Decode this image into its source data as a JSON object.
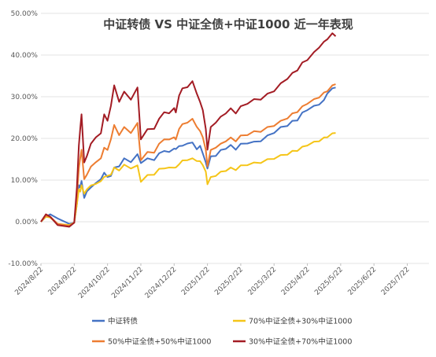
{
  "chart_data": {
    "type": "line",
    "title": "中证转债 VS 中证全债+中证1000 近一年表现",
    "xlabel": "",
    "ylabel": "",
    "ylim": [
      -0.1,
      0.5
    ],
    "y_ticks": [
      -0.1,
      0.0,
      0.1,
      0.2,
      0.3,
      0.4,
      0.5
    ],
    "y_tick_labels": [
      "-10.00%",
      "0.00%",
      "10.00%",
      "20.00%",
      "30.00%",
      "40.00%",
      "50.00%"
    ],
    "x_tick_labels": [
      "2024/8/22",
      "2024/9/22",
      "2024/10/22",
      "2024/11/22",
      "2024/12/22",
      "2025/1/22",
      "2025/2/22",
      "2025/3/22",
      "2025/4/22",
      "2025/5/22",
      "2025/6/22",
      "2025/7/22"
    ],
    "grid": "horizontal",
    "legend_position": "bottom",
    "series": [
      {
        "name": "中证转债",
        "color": "#4472C4",
        "points": [
          [
            0,
            0.0
          ],
          [
            0.15,
            0.012
          ],
          [
            0.28,
            0.018
          ],
          [
            0.5,
            0.008
          ],
          [
            0.85,
            -0.005
          ],
          [
            1.0,
            0.0
          ],
          [
            1.08,
            0.04
          ],
          [
            1.14,
            0.09
          ],
          [
            1.18,
            0.08
          ],
          [
            1.22,
            0.1
          ],
          [
            1.3,
            0.055
          ],
          [
            1.38,
            0.075
          ],
          [
            1.5,
            0.08
          ],
          [
            1.65,
            0.095
          ],
          [
            1.8,
            0.1
          ],
          [
            1.9,
            0.12
          ],
          [
            2.0,
            0.105
          ],
          [
            2.1,
            0.112
          ],
          [
            2.2,
            0.128
          ],
          [
            2.35,
            0.135
          ],
          [
            2.5,
            0.15
          ],
          [
            2.7,
            0.145
          ],
          [
            2.9,
            0.16
          ],
          [
            3.0,
            0.143
          ],
          [
            3.2,
            0.15
          ],
          [
            3.4,
            0.15
          ],
          [
            3.55,
            0.162
          ],
          [
            3.7,
            0.172
          ],
          [
            3.85,
            0.165
          ],
          [
            4.0,
            0.178
          ],
          [
            4.05,
            0.172
          ],
          [
            4.15,
            0.184
          ],
          [
            4.25,
            0.18
          ],
          [
            4.4,
            0.19
          ],
          [
            4.55,
            0.188
          ],
          [
            4.68,
            0.176
          ],
          [
            4.78,
            0.18
          ],
          [
            4.86,
            0.166
          ],
          [
            4.95,
            0.14
          ],
          [
            5.0,
            0.13
          ],
          [
            5.1,
            0.155
          ],
          [
            5.25,
            0.16
          ],
          [
            5.4,
            0.17
          ],
          [
            5.55,
            0.177
          ],
          [
            5.7,
            0.182
          ],
          [
            5.85,
            0.175
          ],
          [
            6.0,
            0.185
          ],
          [
            6.2,
            0.19
          ],
          [
            6.4,
            0.19
          ],
          [
            6.6,
            0.195
          ],
          [
            6.8,
            0.205
          ],
          [
            7.0,
            0.215
          ],
          [
            7.2,
            0.225
          ],
          [
            7.4,
            0.232
          ],
          [
            7.55,
            0.24
          ],
          [
            7.7,
            0.245
          ],
          [
            7.85,
            0.26
          ],
          [
            8.0,
            0.27
          ],
          [
            8.2,
            0.276
          ],
          [
            8.35,
            0.283
          ],
          [
            8.5,
            0.29
          ],
          [
            8.6,
            0.31
          ],
          [
            8.75,
            0.318
          ],
          [
            8.85,
            0.322
          ]
        ]
      },
      {
        "name": "70%中证全债+30%中证1000",
        "color": "#F5C518",
        "points": [
          [
            0,
            0.0
          ],
          [
            0.15,
            0.012
          ],
          [
            0.28,
            0.01
          ],
          [
            0.5,
            -0.005
          ],
          [
            0.85,
            -0.008
          ],
          [
            1.0,
            0.0
          ],
          [
            1.08,
            0.04
          ],
          [
            1.14,
            0.08
          ],
          [
            1.18,
            0.07
          ],
          [
            1.22,
            0.09
          ],
          [
            1.3,
            0.065
          ],
          [
            1.38,
            0.08
          ],
          [
            1.5,
            0.085
          ],
          [
            1.65,
            0.093
          ],
          [
            1.8,
            0.095
          ],
          [
            1.9,
            0.11
          ],
          [
            2.0,
            0.108
          ],
          [
            2.1,
            0.115
          ],
          [
            2.2,
            0.128
          ],
          [
            2.35,
            0.125
          ],
          [
            2.5,
            0.135
          ],
          [
            2.7,
            0.13
          ],
          [
            2.9,
            0.133
          ],
          [
            3.0,
            0.098
          ],
          [
            3.2,
            0.11
          ],
          [
            3.4,
            0.115
          ],
          [
            3.55,
            0.125
          ],
          [
            3.7,
            0.13
          ],
          [
            3.85,
            0.128
          ],
          [
            4.0,
            0.132
          ],
          [
            4.05,
            0.128
          ],
          [
            4.15,
            0.14
          ],
          [
            4.25,
            0.145
          ],
          [
            4.4,
            0.15
          ],
          [
            4.55,
            0.15
          ],
          [
            4.68,
            0.148
          ],
          [
            4.78,
            0.143
          ],
          [
            4.86,
            0.138
          ],
          [
            4.95,
            0.118
          ],
          [
            5.0,
            0.092
          ],
          [
            5.1,
            0.105
          ],
          [
            5.25,
            0.112
          ],
          [
            5.4,
            0.118
          ],
          [
            5.55,
            0.124
          ],
          [
            5.7,
            0.128
          ],
          [
            5.85,
            0.126
          ],
          [
            6.0,
            0.133
          ],
          [
            6.2,
            0.138
          ],
          [
            6.4,
            0.14
          ],
          [
            6.6,
            0.143
          ],
          [
            6.8,
            0.148
          ],
          [
            7.0,
            0.153
          ],
          [
            7.2,
            0.158
          ],
          [
            7.4,
            0.163
          ],
          [
            7.55,
            0.168
          ],
          [
            7.7,
            0.172
          ],
          [
            7.85,
            0.178
          ],
          [
            8.0,
            0.185
          ],
          [
            8.2,
            0.19
          ],
          [
            8.35,
            0.195
          ],
          [
            8.5,
            0.2
          ],
          [
            8.6,
            0.205
          ],
          [
            8.75,
            0.21
          ],
          [
            8.85,
            0.213
          ]
        ]
      },
      {
        "name": "50%中证全债+50%中证1000",
        "color": "#ED7D31",
        "points": [
          [
            0,
            0.0
          ],
          [
            0.15,
            0.015
          ],
          [
            0.28,
            0.012
          ],
          [
            0.5,
            -0.005
          ],
          [
            0.85,
            -0.01
          ],
          [
            1.0,
            0.0
          ],
          [
            1.08,
            0.06
          ],
          [
            1.14,
            0.13
          ],
          [
            1.18,
            0.15
          ],
          [
            1.22,
            0.175
          ],
          [
            1.3,
            0.1
          ],
          [
            1.38,
            0.115
          ],
          [
            1.5,
            0.13
          ],
          [
            1.65,
            0.145
          ],
          [
            1.8,
            0.15
          ],
          [
            1.9,
            0.18
          ],
          [
            2.0,
            0.17
          ],
          [
            2.1,
            0.2
          ],
          [
            2.2,
            0.23
          ],
          [
            2.35,
            0.21
          ],
          [
            2.5,
            0.225
          ],
          [
            2.7,
            0.215
          ],
          [
            2.9,
            0.235
          ],
          [
            3.0,
            0.15
          ],
          [
            3.2,
            0.165
          ],
          [
            3.4,
            0.168
          ],
          [
            3.55,
            0.185
          ],
          [
            3.7,
            0.2
          ],
          [
            3.85,
            0.195
          ],
          [
            4.0,
            0.205
          ],
          [
            4.05,
            0.195
          ],
          [
            4.15,
            0.225
          ],
          [
            4.25,
            0.232
          ],
          [
            4.4,
            0.24
          ],
          [
            4.55,
            0.245
          ],
          [
            4.68,
            0.23
          ],
          [
            4.78,
            0.215
          ],
          [
            4.86,
            0.205
          ],
          [
            4.95,
            0.17
          ],
          [
            5.0,
            0.135
          ],
          [
            5.1,
            0.17
          ],
          [
            5.25,
            0.18
          ],
          [
            5.4,
            0.185
          ],
          [
            5.55,
            0.195
          ],
          [
            5.7,
            0.2
          ],
          [
            5.85,
            0.195
          ],
          [
            6.0,
            0.205
          ],
          [
            6.2,
            0.21
          ],
          [
            6.4,
            0.215
          ],
          [
            6.6,
            0.218
          ],
          [
            6.8,
            0.225
          ],
          [
            7.0,
            0.232
          ],
          [
            7.2,
            0.24
          ],
          [
            7.4,
            0.25
          ],
          [
            7.55,
            0.258
          ],
          [
            7.7,
            0.265
          ],
          [
            7.85,
            0.275
          ],
          [
            8.0,
            0.285
          ],
          [
            8.2,
            0.292
          ],
          [
            8.35,
            0.3
          ],
          [
            8.5,
            0.308
          ],
          [
            8.6,
            0.315
          ],
          [
            8.75,
            0.325
          ],
          [
            8.85,
            0.33
          ]
        ]
      },
      {
        "name": "30%中证全债+70%中证1000",
        "color": "#A31C24",
        "points": [
          [
            0,
            0.0
          ],
          [
            0.15,
            0.018
          ],
          [
            0.28,
            0.012
          ],
          [
            0.5,
            -0.008
          ],
          [
            0.85,
            -0.012
          ],
          [
            1.0,
            0.0
          ],
          [
            1.08,
            0.08
          ],
          [
            1.14,
            0.185
          ],
          [
            1.18,
            0.22
          ],
          [
            1.22,
            0.26
          ],
          [
            1.3,
            0.14
          ],
          [
            1.38,
            0.16
          ],
          [
            1.5,
            0.185
          ],
          [
            1.65,
            0.205
          ],
          [
            1.8,
            0.21
          ],
          [
            1.9,
            0.26
          ],
          [
            2.0,
            0.24
          ],
          [
            2.1,
            0.28
          ],
          [
            2.2,
            0.325
          ],
          [
            2.35,
            0.29
          ],
          [
            2.5,
            0.31
          ],
          [
            2.7,
            0.295
          ],
          [
            2.9,
            0.32
          ],
          [
            3.0,
            0.2
          ],
          [
            3.2,
            0.22
          ],
          [
            3.4,
            0.225
          ],
          [
            3.55,
            0.245
          ],
          [
            3.7,
            0.265
          ],
          [
            3.85,
            0.258
          ],
          [
            4.0,
            0.275
          ],
          [
            4.05,
            0.26
          ],
          [
            4.15,
            0.305
          ],
          [
            4.25,
            0.318
          ],
          [
            4.4,
            0.325
          ],
          [
            4.55,
            0.335
          ],
          [
            4.68,
            0.31
          ],
          [
            4.78,
            0.285
          ],
          [
            4.86,
            0.27
          ],
          [
            4.95,
            0.22
          ],
          [
            5.0,
            0.175
          ],
          [
            5.1,
            0.225
          ],
          [
            5.25,
            0.24
          ],
          [
            5.4,
            0.25
          ],
          [
            5.55,
            0.262
          ],
          [
            5.7,
            0.27
          ],
          [
            5.85,
            0.262
          ],
          [
            6.0,
            0.275
          ],
          [
            6.2,
            0.285
          ],
          [
            6.4,
            0.292
          ],
          [
            6.6,
            0.295
          ],
          [
            6.8,
            0.305
          ],
          [
            7.0,
            0.315
          ],
          [
            7.2,
            0.33
          ],
          [
            7.4,
            0.345
          ],
          [
            7.55,
            0.355
          ],
          [
            7.7,
            0.365
          ],
          [
            7.85,
            0.38
          ],
          [
            8.0,
            0.39
          ],
          [
            8.2,
            0.405
          ],
          [
            8.35,
            0.42
          ],
          [
            8.5,
            0.43
          ],
          [
            8.6,
            0.44
          ],
          [
            8.75,
            0.45
          ],
          [
            8.85,
            0.445
          ]
        ]
      }
    ]
  }
}
